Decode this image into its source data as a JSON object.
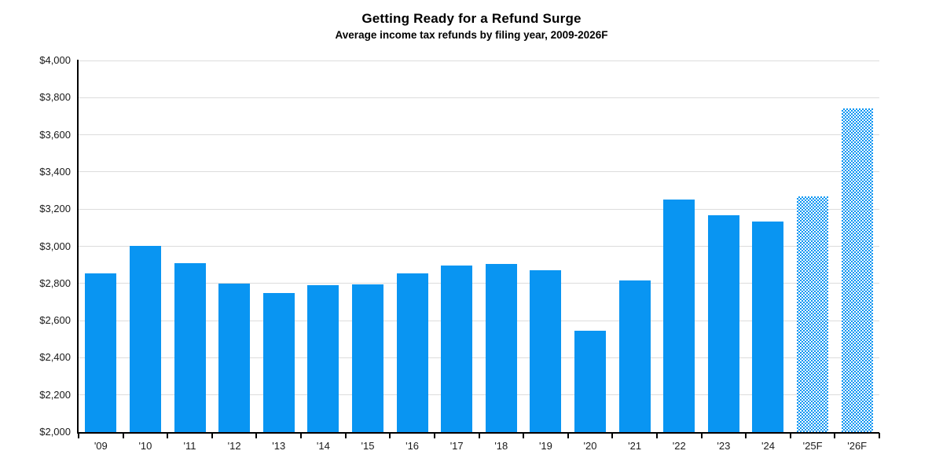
{
  "colors": {
    "bar": "#0995f2",
    "grid": "#dcdcdc",
    "axis": "#000000",
    "text": "#1a1a1a"
  },
  "chart_data": {
    "type": "bar",
    "title": "Getting Ready for a Refund Surge",
    "subtitle": "Average income tax refunds by filing year, 2009-2026F",
    "categories": [
      "'09",
      "'10",
      "'11",
      "'12",
      "'13",
      "'14",
      "'15",
      "'16",
      "'17",
      "'18",
      "'19",
      "'20",
      "'21",
      "'22",
      "'23",
      "'24",
      "'25F",
      "'26F"
    ],
    "values": [
      2855,
      3003,
      2910,
      2800,
      2750,
      2790,
      2795,
      2855,
      2895,
      2905,
      2870,
      2545,
      2815,
      3250,
      3165,
      3135,
      3270,
      3740
    ],
    "forecast_start_index": 16,
    "xlabel": "",
    "ylabel": "",
    "ylim": [
      2000,
      4000
    ],
    "y_tick_step": 200,
    "y_tick_prefix": "$",
    "grid": true,
    "legend": "none"
  }
}
